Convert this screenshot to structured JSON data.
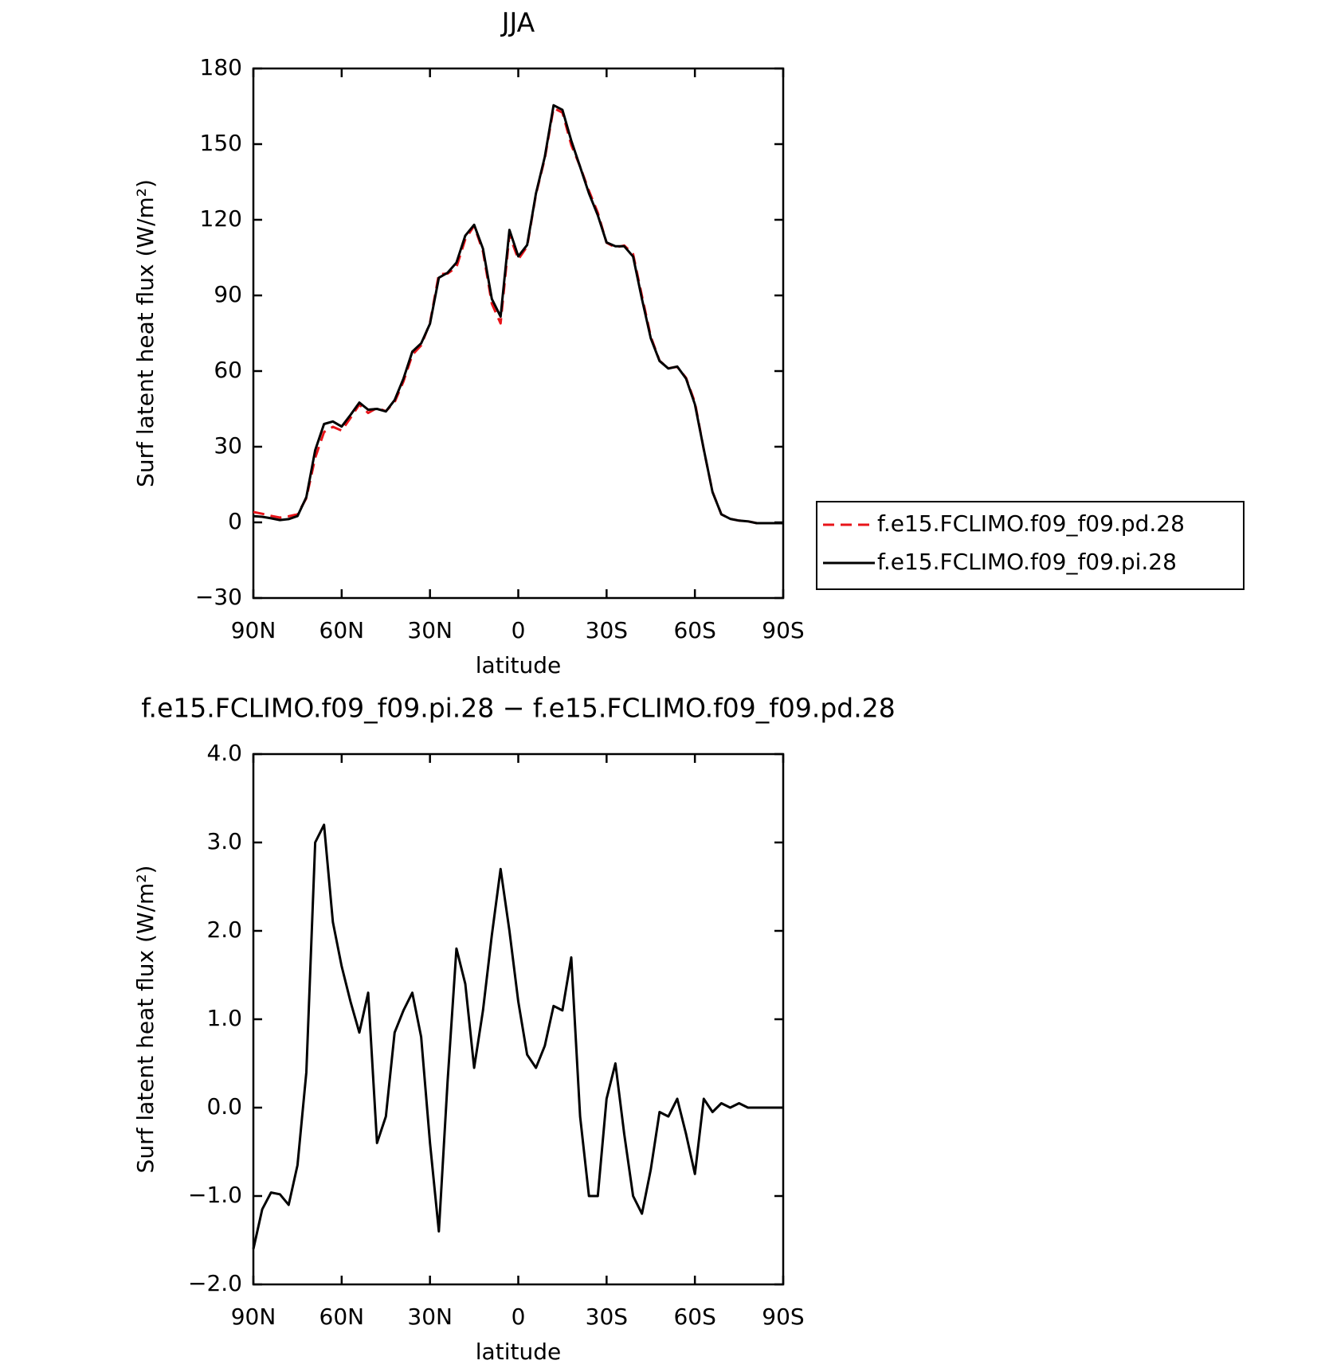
{
  "chart_data": [
    {
      "type": "line",
      "title": "JJA",
      "xlabel": "latitude",
      "ylabel": "Surf latent heat flux (W/m²)",
      "x": [
        90,
        87,
        84,
        81,
        78,
        75,
        72,
        69,
        66,
        63,
        60,
        57,
        54,
        51,
        48,
        45,
        42,
        39,
        36,
        33,
        30,
        27,
        24,
        21,
        18,
        15,
        12,
        9,
        6,
        3,
        0,
        -3,
        -6,
        -9,
        -12,
        -15,
        -18,
        -21,
        -24,
        -27,
        -30,
        -33,
        -36,
        -39,
        -42,
        -45,
        -48,
        -51,
        -54,
        -57,
        -60,
        -63,
        -66,
        -69,
        -72,
        -75,
        -78,
        -81,
        -84,
        -87,
        -90
      ],
      "xlim": [
        90,
        -90
      ],
      "xticks": [
        {
          "value": 90,
          "label": "90N"
        },
        {
          "value": 60,
          "label": "60N"
        },
        {
          "value": 30,
          "label": "30N"
        },
        0,
        {
          "value": -30,
          "label": "30S"
        },
        {
          "value": -60,
          "label": "60S"
        },
        {
          "value": -90,
          "label": "90S"
        }
      ],
      "ylim": [
        -30,
        180
      ],
      "yticks": [
        {
          "value": -30,
          "label": "−30"
        },
        0,
        30,
        60,
        90,
        120,
        150,
        180
      ],
      "legend": "right",
      "series": [
        {
          "name": "f.e15.FCLIMO.f09_f09.pd.28",
          "color": "#e8141a",
          "dashed": true,
          "values": [
            4.1,
            3.4,
            2.6,
            1.9,
            2.4,
            3.2,
            9.6,
            25.6,
            35.8,
            37.9,
            36.4,
            41.4,
            46.7,
            43.4,
            45.4,
            44.1,
            47.7,
            55.9,
            66.4,
            70.2,
            79.2,
            98.4,
            98.7,
            101.2,
            112.3,
            117.6,
            107.4,
            86.7,
            78.9,
            114,
            104.3,
            109.4,
            130.1,
            144.3,
            164.3,
            162.5,
            149.7,
            141.1,
            131.5,
            122.8,
            110.9,
            109,
            109.8,
            106.4,
            89.8,
            73.7,
            64.1,
            61.1,
            61.7,
            57.3,
            47.6,
            28.9,
            12.1,
            3.2,
            1.4,
            0.7,
            0.4,
            -0.3,
            -0.3,
            -0.3,
            -0.3
          ]
        },
        {
          "name": "f.e15.FCLIMO.f09_f09.pi.28",
          "color": "#000000",
          "dashed": false,
          "values": [
            2.5,
            2.2,
            1.6,
            0.9,
            1.3,
            2.5,
            10,
            28.6,
            39,
            40,
            38,
            42.6,
            47.5,
            44.7,
            45,
            44,
            48.5,
            57,
            67.7,
            71,
            78.8,
            97,
            99,
            103,
            113.7,
            118,
            108.5,
            88.6,
            81.6,
            116,
            105.5,
            110,
            130.5,
            145,
            165.4,
            163.6,
            151.4,
            141,
            130.5,
            121.8,
            111,
            109.5,
            109.5,
            105.4,
            88.6,
            73,
            64,
            61,
            61.8,
            57,
            46.8,
            29,
            12,
            3.2,
            1.4,
            0.7,
            0.4,
            -0.3,
            -0.3,
            -0.3,
            -0.3
          ]
        }
      ]
    },
    {
      "type": "line",
      "title": "f.e15.FCLIMO.f09_f09.pi.28 − f.e15.FCLIMO.f09_f09.pd.28",
      "xlabel": "latitude",
      "ylabel": "Surf latent heat flux (W/m²)",
      "x": [
        90,
        87,
        84,
        81,
        78,
        75,
        72,
        69,
        66,
        63,
        60,
        57,
        54,
        51,
        48,
        45,
        42,
        39,
        36,
        33,
        30,
        27,
        24,
        21,
        18,
        15,
        12,
        9,
        6,
        3,
        0,
        -3,
        -6,
        -9,
        -12,
        -15,
        -18,
        -21,
        -24,
        -27,
        -30,
        -33,
        -36,
        -39,
        -42,
        -45,
        -48,
        -51,
        -54,
        -57,
        -60,
        -63,
        -66,
        -69,
        -72,
        -75,
        -78,
        -81,
        -84,
        -87,
        -90
      ],
      "xlim": [
        90,
        -90
      ],
      "xticks": [
        {
          "value": 90,
          "label": "90N"
        },
        {
          "value": 60,
          "label": "60N"
        },
        {
          "value": 30,
          "label": "30N"
        },
        0,
        {
          "value": -30,
          "label": "30S"
        },
        {
          "value": -60,
          "label": "60S"
        },
        {
          "value": -90,
          "label": "90S"
        }
      ],
      "ylim": [
        -2,
        4
      ],
      "yticks": [
        {
          "value": -2,
          "label": "−2.0"
        },
        {
          "value": -1,
          "label": "−1.0"
        },
        {
          "value": 0,
          "label": "0.0"
        },
        {
          "value": 1,
          "label": "1.0"
        },
        {
          "value": 2,
          "label": "2.0"
        },
        {
          "value": 3,
          "label": "3.0"
        },
        {
          "value": 4,
          "label": "4.0"
        }
      ],
      "color": "#000000",
      "values": [
        -1.6,
        -1.15,
        -0.96,
        -0.98,
        -1.1,
        -0.65,
        0.4,
        3.0,
        3.2,
        2.1,
        1.6,
        1.2,
        0.85,
        1.3,
        -0.4,
        -0.1,
        0.85,
        1.1,
        1.3,
        0.8,
        -0.4,
        -1.4,
        0.3,
        1.8,
        1.4,
        0.45,
        1.1,
        1.95,
        2.7,
        2.0,
        1.2,
        0.6,
        0.45,
        0.7,
        1.15,
        1.1,
        1.7,
        -0.1,
        -1.0,
        -1.0,
        0.1,
        0.5,
        -0.3,
        -1.0,
        -1.2,
        -0.7,
        -0.05,
        -0.1,
        0.1,
        -0.3,
        -0.75,
        0.1,
        -0.05,
        0.05,
        0,
        0.05,
        0,
        0,
        0,
        0,
        0
      ]
    }
  ]
}
